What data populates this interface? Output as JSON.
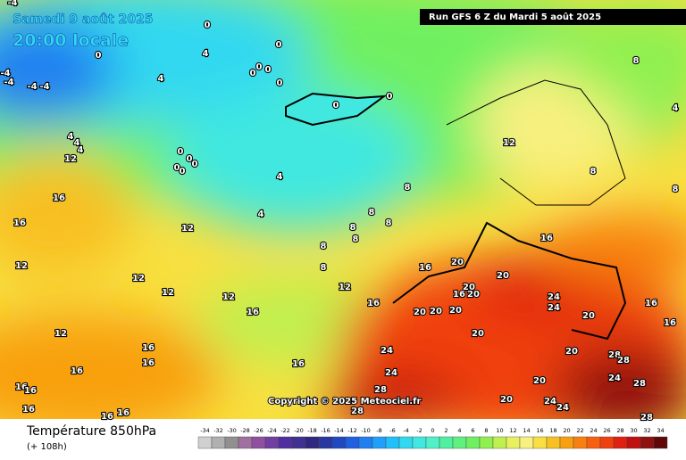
{
  "header": {
    "date": "Samedi 9 août 2025",
    "time": "20:00 locale",
    "run": "Run GFS 6 Z du Mardi 5 août 2025"
  },
  "copyright": "Copyright © 2025 Meteociel.fr",
  "legend": {
    "title": "Température 850hPa",
    "lead": "(+ 108h)",
    "values": [
      -34,
      -32,
      -30,
      -28,
      -26,
      -24,
      -22,
      -20,
      -18,
      -16,
      -14,
      -12,
      -10,
      -8,
      -6,
      -4,
      -2,
      0,
      2,
      4,
      6,
      8,
      10,
      12,
      14,
      16,
      18,
      20,
      22,
      24,
      26,
      28,
      30,
      32,
      34
    ],
    "colors": [
      "#d0d0d0",
      "#b0b0b0",
      "#909090",
      "#a070a0",
      "#9050a0",
      "#7040a0",
      "#5030a0",
      "#403090",
      "#302880",
      "#2838a0",
      "#2048c0",
      "#2060e0",
      "#2080f0",
      "#20a0f8",
      "#20c0f8",
      "#30d8f0",
      "#40e8e0",
      "#50f0c8",
      "#50f0a0",
      "#60f080",
      "#70f060",
      "#90f050",
      "#c0f050",
      "#e8f060",
      "#f8f080",
      "#f8e040",
      "#f8c020",
      "#f8a010",
      "#f88010",
      "#f86010",
      "#f04010",
      "#e02010",
      "#c01010",
      "#901010",
      "#600808"
    ]
  },
  "map_labels": [
    -4,
    0,
    0,
    4,
    0,
    0,
    0,
    0,
    0,
    -4,
    -4,
    -4,
    -4,
    4,
    0,
    0,
    4,
    8,
    4,
    4,
    4,
    12,
    0,
    0,
    0,
    0,
    0,
    12,
    8,
    4,
    8,
    8,
    16,
    4,
    8,
    8,
    8,
    8,
    8,
    12,
    16,
    16,
    20,
    16,
    8,
    12,
    12,
    20,
    20,
    20,
    16,
    12,
    12,
    12,
    24,
    24,
    16,
    16,
    16,
    20,
    20,
    20,
    20,
    16,
    12,
    20,
    16,
    16,
    24,
    20,
    28,
    28,
    16,
    16,
    24,
    24,
    28,
    16,
    16,
    20,
    28,
    20,
    24,
    24,
    16,
    28,
    16,
    16,
    28
  ]
}
